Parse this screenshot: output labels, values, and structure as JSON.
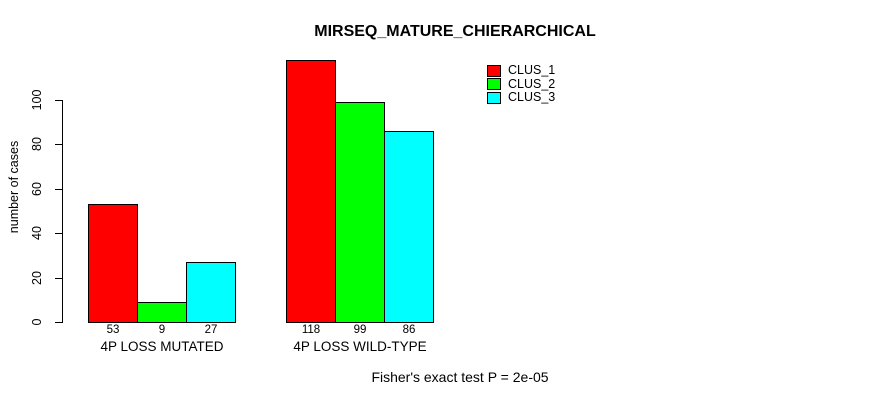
{
  "chart_data": {
    "type": "bar",
    "title": "MIRSEQ_MATURE_CHIERARCHICAL",
    "ylabel": "number of cases",
    "xlabel": "",
    "footer": "Fisher's exact test P = 2e-05",
    "categories": [
      "4P LOSS MUTATED",
      "4P LOSS WILD-TYPE"
    ],
    "series": [
      {
        "name": "CLUS_1",
        "color": "#ff0000",
        "values": [
          53,
          118
        ]
      },
      {
        "name": "CLUS_2",
        "color": "#00ff00",
        "values": [
          9,
          99
        ]
      },
      {
        "name": "CLUS_3",
        "color": "#00ffff",
        "values": [
          27,
          86
        ]
      }
    ],
    "y_ticks": [
      0,
      20,
      40,
      60,
      80,
      100
    ],
    "ylim": [
      0,
      118
    ],
    "grid": false,
    "legend_position": "top-right",
    "bar_border_color": "#000000",
    "text_color": "#000000",
    "background_color": "#ffffff"
  }
}
